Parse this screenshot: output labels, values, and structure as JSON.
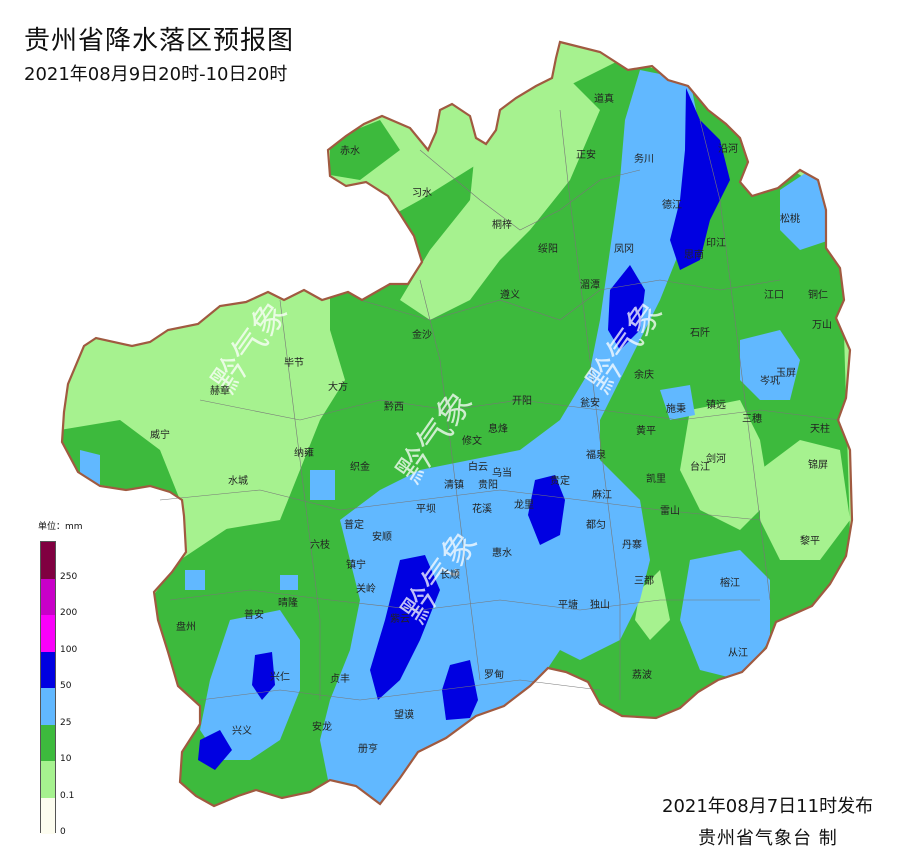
{
  "title": "贵州省降水落区预报图",
  "subtitle": "2021年08月9日20时-10日20时",
  "issued": "2021年08月7日11时发布",
  "agency": "贵州省气象台 制",
  "legend": {
    "title": "单位：mm",
    "levels": [
      {
        "label": "0",
        "color": "#fdfdf0"
      },
      {
        "label": "0.1",
        "color": "#a6f28f"
      },
      {
        "label": "10",
        "color": "#3dba3d"
      },
      {
        "label": "25",
        "color": "#61b8ff"
      },
      {
        "label": "50",
        "color": "#0000e1"
      },
      {
        "label": "100",
        "color": "#fa00fa"
      },
      {
        "label": "200",
        "color": "#c800c8"
      },
      {
        "label": "250",
        "color": "#800040"
      }
    ]
  },
  "watermark": "黔气象",
  "places": [
    {
      "name": "道真"
    },
    {
      "name": "赤水"
    },
    {
      "name": "习水"
    },
    {
      "name": "正安"
    },
    {
      "name": "务川"
    },
    {
      "name": "沿河"
    },
    {
      "name": "德江"
    },
    {
      "name": "松桃"
    },
    {
      "name": "桐梓"
    },
    {
      "name": "绥阳"
    },
    {
      "name": "凤冈"
    },
    {
      "name": "印江"
    },
    {
      "name": "思南"
    },
    {
      "name": "湄潭"
    },
    {
      "name": "江口"
    },
    {
      "name": "铜仁"
    },
    {
      "name": "遵义"
    },
    {
      "name": "万山"
    },
    {
      "name": "金沙"
    },
    {
      "name": "石阡"
    },
    {
      "name": "毕节"
    },
    {
      "name": "大方"
    },
    {
      "name": "余庆"
    },
    {
      "name": "玉屏"
    },
    {
      "name": "赫章"
    },
    {
      "name": "黔西"
    },
    {
      "name": "开阳"
    },
    {
      "name": "瓮安"
    },
    {
      "name": "施秉"
    },
    {
      "name": "镇远"
    },
    {
      "name": "岑巩"
    },
    {
      "name": "三穗"
    },
    {
      "name": "天柱"
    },
    {
      "name": "威宁"
    },
    {
      "name": "修文"
    },
    {
      "name": "黄平"
    },
    {
      "name": "纳雍"
    },
    {
      "name": "息烽"
    },
    {
      "name": "福泉"
    },
    {
      "name": "剑河"
    },
    {
      "name": "织金"
    },
    {
      "name": "白云"
    },
    {
      "name": "台江"
    },
    {
      "name": "锦屏"
    },
    {
      "name": "清镇"
    },
    {
      "name": "乌当"
    },
    {
      "name": "贵阳"
    },
    {
      "name": "贵定"
    },
    {
      "name": "麻江"
    },
    {
      "name": "凯里"
    },
    {
      "name": "水城"
    },
    {
      "name": "龙里"
    },
    {
      "name": "平坝"
    },
    {
      "name": "花溪"
    },
    {
      "name": "都匀"
    },
    {
      "name": "雷山"
    },
    {
      "name": "普定"
    },
    {
      "name": "安顺"
    },
    {
      "name": "丹寨"
    },
    {
      "name": "黎平"
    },
    {
      "name": "六枝"
    },
    {
      "name": "长顺"
    },
    {
      "name": "镇宁"
    },
    {
      "name": "惠水"
    },
    {
      "name": "三都"
    },
    {
      "name": "关岭"
    },
    {
      "name": "平塘"
    },
    {
      "name": "独山"
    },
    {
      "name": "榕江"
    },
    {
      "name": "普安"
    },
    {
      "name": "晴隆"
    },
    {
      "name": "紫云"
    },
    {
      "name": "盘州"
    },
    {
      "name": "兴仁"
    },
    {
      "name": "贞丰"
    },
    {
      "name": "罗甸"
    },
    {
      "name": "荔波"
    },
    {
      "name": "从江"
    },
    {
      "name": "安龙"
    },
    {
      "name": "兴义"
    },
    {
      "name": "望谟"
    },
    {
      "name": "册亨"
    }
  ]
}
